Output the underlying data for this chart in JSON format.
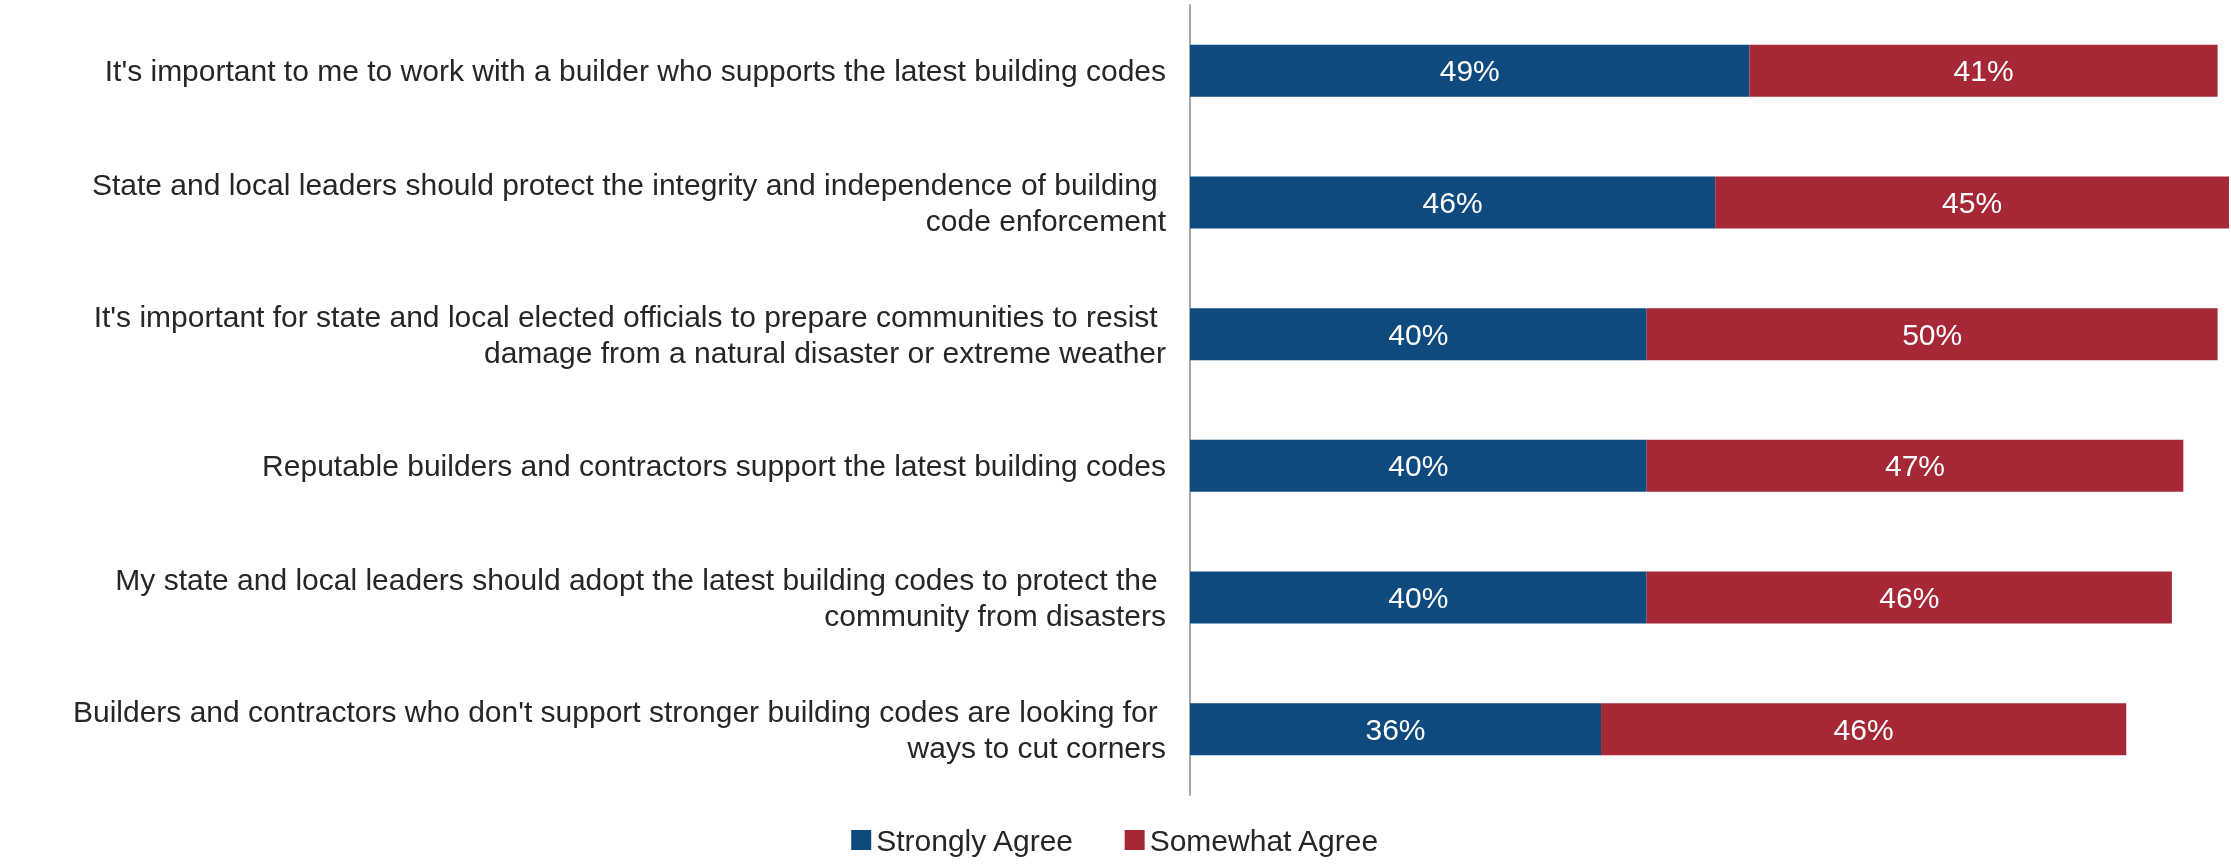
{
  "chart_data": {
    "type": "bar",
    "orientation": "horizontal",
    "stacked": true,
    "legend": "bottom",
    "categories": [
      "It's important to me to work with a builder who supports the latest building codes",
      "State and local leaders should protect the integrity and independence of building code enforcement",
      "It's important for state and local elected officials to prepare communities to resist damage from a natural disaster or extreme weather",
      "Reputable builders and contractors support the latest building codes",
      "My state and local leaders should adopt the latest building codes to protect the community from disasters",
      "Builders and contractors who don't support stronger building codes are looking for ways to cut corners"
    ],
    "series": [
      {
        "name": "Strongly Agree",
        "color": "#0f4a7e",
        "values": [
          49,
          46,
          40,
          40,
          40,
          36
        ],
        "value_labels": [
          "49%",
          "46%",
          "40%",
          "40%",
          "40%",
          "36%"
        ]
      },
      {
        "name": "Somewhat Agree",
        "color": "#a62837",
        "values": [
          41,
          45,
          50,
          47,
          46,
          46
        ],
        "value_labels": [
          "41%",
          "45%",
          "50%",
          "47%",
          "46%",
          "46%"
        ]
      }
    ]
  }
}
